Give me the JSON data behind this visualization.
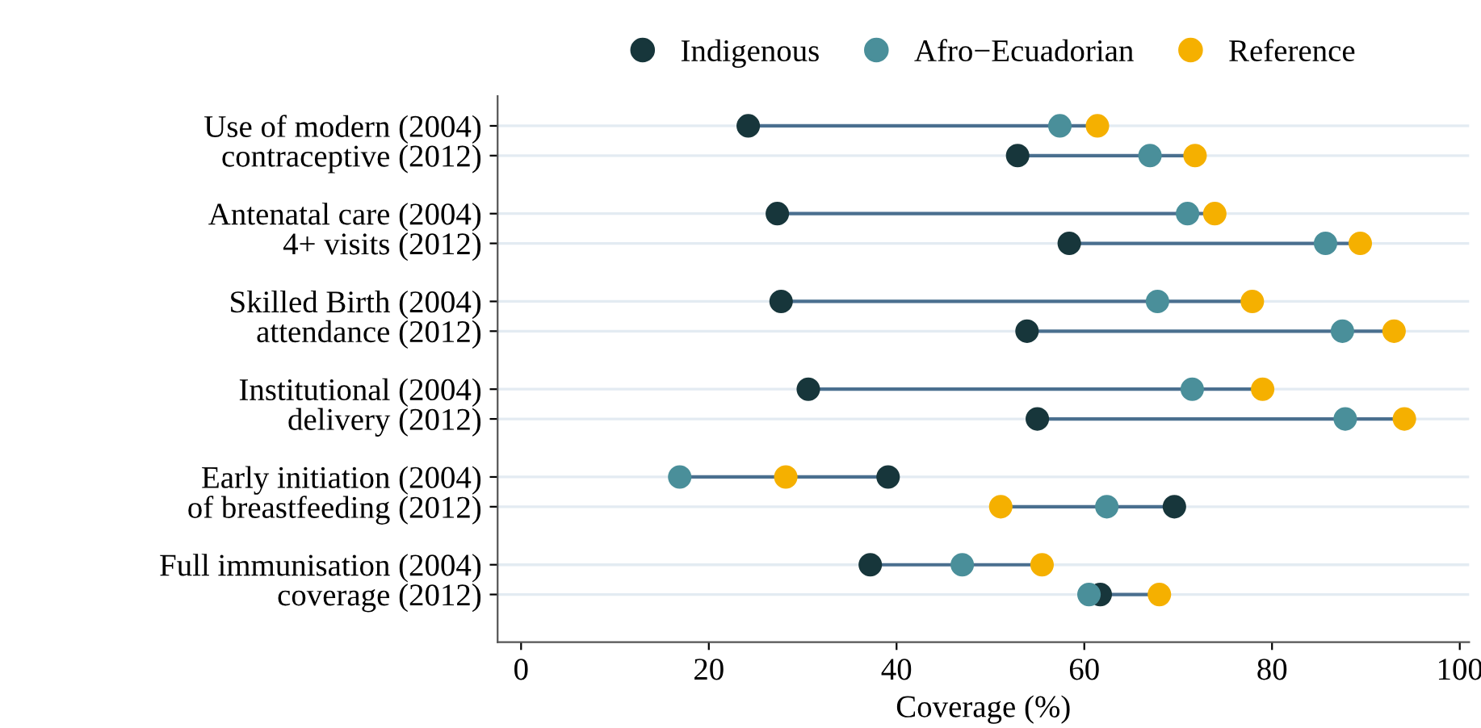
{
  "chart_data": {
    "type": "scatter",
    "orientation": "horizontal",
    "xlabel": "Coverage (%)",
    "categories": [
      "Use of modern (2004)",
      "contraceptive (2012)",
      "Antenatal care (2004)",
      "4+ visits (2012)",
      "Skilled Birth (2004)",
      "attendance (2012)",
      "Institutional (2004)",
      "delivery (2012)",
      "Early initiation (2004)",
      "of breastfeeding (2012)",
      "Full immunisation (2004)",
      "coverage (2012)"
    ],
    "series": [
      {
        "name": "Indigenous",
        "color": "#17363b",
        "values": [
          24.2,
          52.9,
          27.3,
          58.4,
          27.7,
          53.9,
          30.6,
          55.0,
          39.1,
          69.6,
          37.2,
          61.7
        ]
      },
      {
        "name": "Afro−Ecuadorian",
        "color": "#4a8f9a",
        "values": [
          57.4,
          67.0,
          71.0,
          85.7,
          67.8,
          87.5,
          71.5,
          87.8,
          16.9,
          62.4,
          47.0,
          60.5
        ]
      },
      {
        "name": "Reference",
        "color": "#f5b000",
        "values": [
          61.4,
          71.8,
          73.9,
          89.4,
          77.9,
          93.0,
          79.0,
          94.1,
          28.2,
          51.1,
          55.5,
          68.0
        ]
      }
    ],
    "xlim": [
      -2.5,
      101
    ],
    "xticks": [
      0,
      20,
      40,
      60,
      80,
      100
    ],
    "grid": "y",
    "legend": "top",
    "marker": "circle"
  }
}
